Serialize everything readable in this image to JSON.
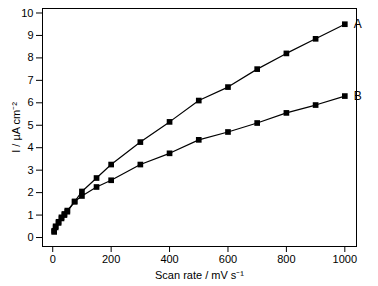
{
  "chart_data": {
    "type": "line",
    "x_label": "Scan rate / mV s⁻¹",
    "y_label": "I / µA cm⁻²",
    "x": [
      5,
      10,
      20,
      30,
      40,
      50,
      75,
      100,
      150,
      200,
      300,
      400,
      500,
      600,
      700,
      800,
      900,
      1000
    ],
    "series": [
      {
        "name": "A",
        "color": "#000000",
        "marker": "square",
        "line_style": "solid",
        "values": [
          0.3,
          0.5,
          0.7,
          0.9,
          1.05,
          1.2,
          1.6,
          2.05,
          2.65,
          3.25,
          4.25,
          5.15,
          6.1,
          6.7,
          7.5,
          8.2,
          8.85,
          9.5
        ]
      },
      {
        "name": "B",
        "color": "#000000",
        "marker": "square",
        "line_style": "solid",
        "values": [
          0.25,
          0.45,
          0.65,
          0.85,
          1.0,
          1.15,
          1.6,
          1.85,
          2.25,
          2.55,
          3.25,
          3.75,
          4.35,
          4.7,
          5.1,
          5.55,
          5.9,
          6.3
        ]
      }
    ],
    "xlim": [
      -35,
      1040
    ],
    "xticks": [
      0,
      200,
      400,
      600,
      800,
      1000
    ],
    "ylim": [
      -0.4,
      10.2
    ],
    "yticks": [
      0,
      1,
      2,
      3,
      4,
      5,
      6,
      7,
      8,
      9,
      10
    ],
    "grid": false
  }
}
